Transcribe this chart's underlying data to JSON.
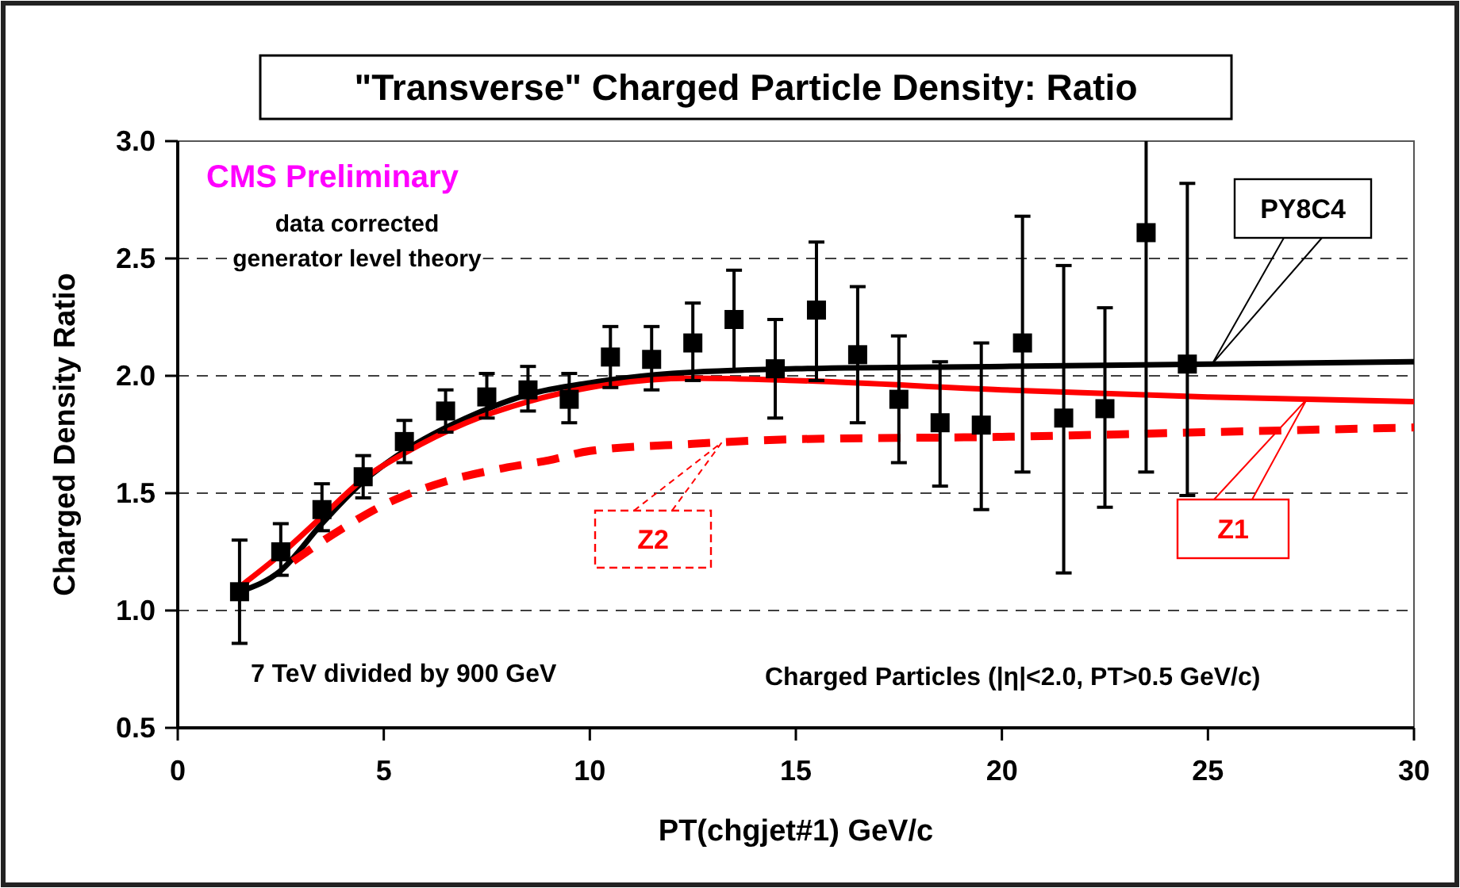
{
  "chart_data": {
    "type": "scatter",
    "title": "\"Transverse\" Charged Particle Density: Ratio",
    "xlabel": "PT(chgjet#1) GeV/c",
    "ylabel": "Charged Density Ratio",
    "xlim": [
      0,
      30
    ],
    "xticks": [
      0,
      5,
      10,
      15,
      20,
      25,
      30
    ],
    "ylim": [
      0.5,
      3.0
    ],
    "yticks": [
      0.5,
      {
        "value": 1,
        "label": "1.0"
      },
      1.5,
      {
        "value": 2,
        "label": "2.0"
      },
      2.5,
      {
        "value": 3,
        "label": "3.0"
      }
    ],
    "grid": "y",
    "legend": false,
    "annotations": [
      "CMS Preliminary",
      "data corrected",
      "generator level theory",
      "7 TeV divided by 900 GeV",
      "Charged Particles (|η|<2.0, PT>0.5 GeV/c)"
    ],
    "series": [
      {
        "color": "#000000",
        "marker": "square",
        "x": [
          1.5,
          2.5,
          3.5,
          4.5,
          5.5,
          6.5,
          7.5,
          8.5,
          9.5,
          10.5,
          11.5,
          12.5,
          13.5,
          14.5,
          15.5,
          16.5,
          17.5,
          18.5,
          19.5,
          20.5,
          21.5,
          22.5,
          23.5,
          24.5
        ],
        "values": [
          1.08,
          1.25,
          1.43,
          1.57,
          1.72,
          1.85,
          1.91,
          1.94,
          1.9,
          2.08,
          2.07,
          2.14,
          2.24,
          2.03,
          2.28,
          2.09,
          1.9,
          1.8,
          1.79,
          2.14,
          1.82,
          1.86,
          2.61,
          2.05
        ],
        "errors": [
          [
            0.86,
            1.3
          ],
          [
            1.15,
            1.37
          ],
          [
            1.34,
            1.54
          ],
          [
            1.48,
            1.66
          ],
          [
            1.63,
            1.81
          ],
          [
            1.76,
            1.94
          ],
          [
            1.82,
            2.01
          ],
          [
            1.85,
            2.04
          ],
          [
            1.8,
            2.01
          ],
          [
            1.95,
            2.21
          ],
          [
            1.94,
            2.21
          ],
          [
            1.98,
            2.31
          ],
          [
            2.02,
            2.45
          ],
          [
            1.82,
            2.24
          ],
          [
            1.98,
            2.57
          ],
          [
            1.8,
            2.38
          ],
          [
            1.63,
            2.17
          ],
          [
            1.53,
            2.06
          ],
          [
            1.43,
            2.14
          ],
          [
            1.59,
            2.68
          ],
          [
            1.16,
            2.47
          ],
          [
            1.44,
            2.29
          ],
          [
            1.59,
            3.0
          ],
          [
            1.49,
            2.82
          ]
        ]
      },
      {
        "type": "line",
        "name": "PY8C4",
        "color": "#000000",
        "line_style": "solid",
        "x": [
          1.5,
          2.5,
          3.5,
          4.5,
          5.5,
          7,
          8.5,
          10,
          12,
          15,
          20,
          25,
          30
        ],
        "values": [
          1.08,
          1.17,
          1.37,
          1.55,
          1.68,
          1.82,
          1.92,
          1.97,
          2.01,
          2.03,
          2.04,
          2.05,
          2.06
        ]
      },
      {
        "type": "line",
        "name": "Z1",
        "color": "#ff0000",
        "line_style": "solid",
        "x": [
          1.5,
          2.5,
          3.5,
          4.5,
          5.5,
          7,
          8.5,
          10,
          12.5,
          15,
          20,
          25,
          30
        ],
        "values": [
          1.1,
          1.24,
          1.4,
          1.56,
          1.67,
          1.8,
          1.89,
          1.95,
          1.99,
          1.98,
          1.94,
          1.91,
          1.89
        ]
      },
      {
        "type": "line",
        "name": "Z2",
        "color": "#ff0000",
        "line_style": "dashed",
        "x": [
          2.8,
          4,
          5,
          6.5,
          8,
          9,
          10,
          12.5,
          15,
          20,
          25,
          30
        ],
        "values": [
          1.21,
          1.35,
          1.45,
          1.55,
          1.61,
          1.64,
          1.68,
          1.71,
          1.73,
          1.74,
          1.76,
          1.78
        ]
      }
    ]
  }
}
